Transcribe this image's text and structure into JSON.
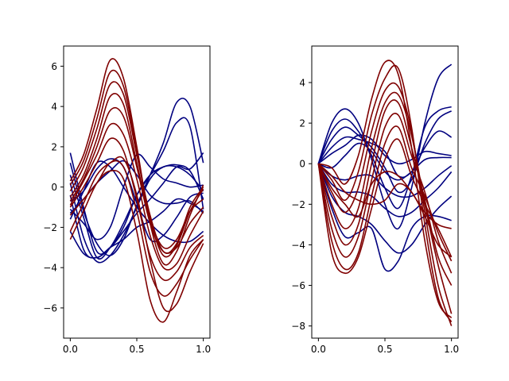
{
  "figure": {
    "background": "#ffffff",
    "colors": {
      "blue": "#00007f",
      "red": "#7f0000"
    }
  },
  "chart_data": [
    {
      "type": "line",
      "title": "",
      "xlabel": "",
      "ylabel": "",
      "xlim": [
        -0.05,
        1.05
      ],
      "ylim": [
        -7.5,
        7.0
      ],
      "xticks": [
        0.0,
        0.5,
        1.0
      ],
      "xtick_labels": [
        "0.0",
        "0.5",
        "1.0"
      ],
      "yticks": [
        -6,
        -4,
        -2,
        0,
        2,
        4,
        6
      ],
      "ytick_labels": [
        "−6",
        "−4",
        "−2",
        "0",
        "2",
        "4",
        "6"
      ],
      "grid": false,
      "legend": "none",
      "x": [
        0.0,
        0.1,
        0.2,
        0.3,
        0.4,
        0.5,
        0.6,
        0.7,
        0.8,
        0.9,
        1.0
      ],
      "series": [
        {
          "color": "#00007f",
          "values": [
            1.7,
            -1.0,
            -3.2,
            -3.0,
            -2.2,
            -1.3,
            -0.6,
            0.2,
            1.0,
            0.9,
            1.7
          ]
        },
        {
          "color": "#00007f",
          "values": [
            1.2,
            -1.2,
            -2.8,
            -3.4,
            -2.6,
            -0.9,
            0.6,
            2.2,
            4.2,
            4.0,
            1.2
          ]
        },
        {
          "color": "#00007f",
          "values": [
            0.6,
            -1.5,
            -3.5,
            -3.0,
            -1.8,
            -0.4,
            0.6,
            1.8,
            3.2,
            3.0,
            -1.1
          ]
        },
        {
          "color": "#00007f",
          "values": [
            0.2,
            -2.5,
            -3.7,
            -3.4,
            -2.4,
            -1.0,
            0.4,
            1.0,
            1.0,
            0.6,
            -0.2
          ]
        },
        {
          "color": "#00007f",
          "values": [
            -0.4,
            -3.1,
            -3.5,
            -3.0,
            -2.6,
            -2.0,
            -1.7,
            -1.2,
            -0.6,
            -0.8,
            -1.2
          ]
        },
        {
          "color": "#00007f",
          "values": [
            -0.7,
            -0.2,
            0.9,
            1.4,
            1.0,
            -0.8,
            -2.6,
            -2.4,
            -1.5,
            -0.5,
            -0.3
          ]
        },
        {
          "color": "#00007f",
          "values": [
            -1.1,
            -1.8,
            -2.6,
            -2.0,
            0.0,
            1.6,
            1.0,
            0.4,
            0.2,
            0.0,
            0.1
          ]
        },
        {
          "color": "#00007f",
          "values": [
            -1.3,
            -0.6,
            0.2,
            0.8,
            1.3,
            0.6,
            -0.4,
            -0.8,
            -0.8,
            -0.7,
            -1.3
          ]
        },
        {
          "color": "#00007f",
          "values": [
            -1.6,
            -0.2,
            1.2,
            1.0,
            0.0,
            -1.0,
            -1.8,
            -2.4,
            -2.7,
            -2.7,
            -2.2
          ]
        },
        {
          "color": "#00007f",
          "values": [
            -2.2,
            -3.3,
            -3.5,
            -3.0,
            -2.0,
            -0.4,
            0.6,
            1.0,
            1.1,
            0.8,
            -0.6
          ]
        },
        {
          "color": "#7f0000",
          "values": [
            0.3,
            1.6,
            3.9,
            6.3,
            5.4,
            2.0,
            -1.8,
            -3.8,
            -3.2,
            -1.4,
            0.1
          ]
        },
        {
          "color": "#7f0000",
          "values": [
            0.1,
            1.3,
            3.4,
            5.7,
            5.0,
            1.8,
            -1.6,
            -3.4,
            -2.9,
            -1.2,
            -0.1
          ]
        },
        {
          "color": "#7f0000",
          "values": [
            -0.2,
            1.0,
            2.9,
            5.1,
            4.6,
            1.6,
            -1.4,
            -3.2,
            -2.8,
            -1.0,
            0.0
          ]
        },
        {
          "color": "#7f0000",
          "values": [
            -0.5,
            0.6,
            2.4,
            4.5,
            4.1,
            1.2,
            -1.6,
            -3.0,
            -2.6,
            -1.2,
            -0.6
          ]
        },
        {
          "color": "#7f0000",
          "values": [
            -0.7,
            0.4,
            2.0,
            3.8,
            3.5,
            1.0,
            -1.8,
            -3.2,
            -3.0,
            -1.8,
            -1.0
          ]
        },
        {
          "color": "#7f0000",
          "values": [
            -0.9,
            0.3,
            1.6,
            3.1,
            2.6,
            0.4,
            -2.4,
            -4.0,
            -3.8,
            -2.4,
            -1.2
          ]
        },
        {
          "color": "#7f0000",
          "values": [
            -1.0,
            0.0,
            1.2,
            2.4,
            1.8,
            -0.6,
            -3.4,
            -4.6,
            -4.2,
            -3.0,
            -2.4
          ]
        },
        {
          "color": "#7f0000",
          "values": [
            -1.4,
            -0.6,
            0.2,
            1.2,
            1.0,
            -1.2,
            -4.2,
            -5.4,
            -4.8,
            -3.6,
            -2.6
          ]
        },
        {
          "color": "#7f0000",
          "values": [
            -2.2,
            -0.8,
            0.6,
            1.2,
            1.4,
            -0.4,
            -3.6,
            -6.0,
            -5.8,
            -4.2,
            -2.8
          ]
        },
        {
          "color": "#7f0000",
          "values": [
            -2.6,
            -1.2,
            0.2,
            0.8,
            0.4,
            -2.2,
            -5.6,
            -6.7,
            -5.2,
            -3.4,
            -2.6
          ]
        }
      ]
    },
    {
      "type": "line",
      "title": "",
      "xlabel": "",
      "ylabel": "",
      "xlim": [
        -0.05,
        1.05
      ],
      "ylim": [
        -8.6,
        5.8
      ],
      "xticks": [
        0.0,
        0.5,
        1.0
      ],
      "xtick_labels": [
        "0.0",
        "0.5",
        "1.0"
      ],
      "yticks": [
        -8,
        -6,
        -4,
        -2,
        0,
        2,
        4
      ],
      "ytick_labels": [
        "−8",
        "−6",
        "−4",
        "−2",
        "0",
        "2",
        "4"
      ],
      "grid": false,
      "legend": "none",
      "x": [
        0.0,
        0.1,
        0.2,
        0.3,
        0.4,
        0.5,
        0.6,
        0.7,
        0.8,
        0.9,
        1.0
      ],
      "series": [
        {
          "color": "#00007f",
          "values": [
            0.0,
            2.0,
            2.7,
            2.0,
            0.2,
            -2.0,
            -3.2,
            -1.2,
            2.0,
            4.2,
            4.9
          ]
        },
        {
          "color": "#00007f",
          "values": [
            0.0,
            1.6,
            2.2,
            1.6,
            0.4,
            -1.2,
            -2.2,
            -0.6,
            1.8,
            2.6,
            2.8
          ]
        },
        {
          "color": "#00007f",
          "values": [
            0.0,
            1.2,
            1.8,
            1.4,
            0.8,
            -0.2,
            -1.4,
            -0.8,
            1.0,
            2.2,
            2.6
          ]
        },
        {
          "color": "#00007f",
          "values": [
            0.0,
            0.8,
            1.3,
            1.2,
            1.0,
            0.6,
            -0.6,
            -0.4,
            0.8,
            1.6,
            1.3
          ]
        },
        {
          "color": "#00007f",
          "values": [
            0.0,
            0.5,
            0.9,
            1.4,
            1.2,
            0.4,
            0.0,
            0.2,
            0.6,
            0.5,
            0.4
          ]
        },
        {
          "color": "#00007f",
          "values": [
            0.0,
            -0.2,
            0.4,
            1.0,
            0.6,
            -0.4,
            -0.8,
            -0.4,
            0.2,
            0.3,
            0.3
          ]
        },
        {
          "color": "#00007f",
          "values": [
            0.0,
            -0.6,
            -0.8,
            -0.6,
            -0.6,
            -1.2,
            -1.6,
            -1.6,
            -1.2,
            -0.6,
            -0.1
          ]
        },
        {
          "color": "#00007f",
          "values": [
            0.0,
            -1.0,
            -1.4,
            -1.4,
            -1.6,
            -2.2,
            -2.6,
            -2.4,
            -1.8,
            -1.2,
            -0.4
          ]
        },
        {
          "color": "#00007f",
          "values": [
            0.0,
            -1.6,
            -2.4,
            -2.6,
            -3.0,
            -3.8,
            -4.4,
            -4.0,
            -3.0,
            -2.2,
            -1.6
          ]
        },
        {
          "color": "#00007f",
          "values": [
            0.0,
            -2.2,
            -3.6,
            -3.4,
            -3.2,
            -5.2,
            -4.8,
            -3.2,
            -2.6,
            -2.6,
            -2.8
          ]
        },
        {
          "color": "#7f0000",
          "values": [
            0.0,
            -0.2,
            -1.0,
            0.4,
            3.2,
            5.0,
            4.4,
            0.8,
            -3.8,
            -6.8,
            -7.6
          ]
        },
        {
          "color": "#7f0000",
          "values": [
            0.0,
            -0.8,
            -1.8,
            -0.4,
            2.4,
            4.2,
            4.7,
            1.8,
            -3.0,
            -6.6,
            -7.8
          ]
        },
        {
          "color": "#7f0000",
          "values": [
            0.0,
            -1.4,
            -2.4,
            -1.2,
            1.6,
            3.6,
            3.8,
            1.6,
            -2.4,
            -6.0,
            -8.0
          ]
        },
        {
          "color": "#7f0000",
          "values": [
            0.0,
            -2.0,
            -3.2,
            -2.2,
            0.8,
            3.0,
            3.4,
            1.4,
            -2.0,
            -5.0,
            -7.4
          ]
        },
        {
          "color": "#7f0000",
          "values": [
            0.0,
            -2.6,
            -4.0,
            -3.0,
            0.0,
            2.6,
            3.0,
            0.8,
            -1.8,
            -4.6,
            -6.0
          ]
        },
        {
          "color": "#7f0000",
          "values": [
            0.0,
            -3.2,
            -4.6,
            -3.6,
            -0.8,
            1.8,
            2.4,
            0.4,
            -1.4,
            -3.8,
            -5.4
          ]
        },
        {
          "color": "#7f0000",
          "values": [
            0.0,
            -3.8,
            -5.2,
            -4.4,
            -1.6,
            1.0,
            1.8,
            -0.2,
            -1.6,
            -3.4,
            -4.8
          ]
        },
        {
          "color": "#7f0000",
          "values": [
            0.0,
            -4.4,
            -5.4,
            -4.6,
            -2.2,
            0.2,
            1.2,
            -0.6,
            -2.0,
            -3.2,
            -4.6
          ]
        },
        {
          "color": "#7f0000",
          "values": [
            0.0,
            -1.2,
            -2.0,
            -2.6,
            -1.0,
            -0.4,
            -0.6,
            -1.4,
            -2.4,
            -3.0,
            -3.2
          ]
        },
        {
          "color": "#7f0000",
          "values": [
            0.0,
            -0.6,
            -1.4,
            -1.8,
            -2.0,
            -1.8,
            -1.0,
            -1.4,
            -2.6,
            -4.0,
            -4.6
          ]
        }
      ]
    }
  ]
}
